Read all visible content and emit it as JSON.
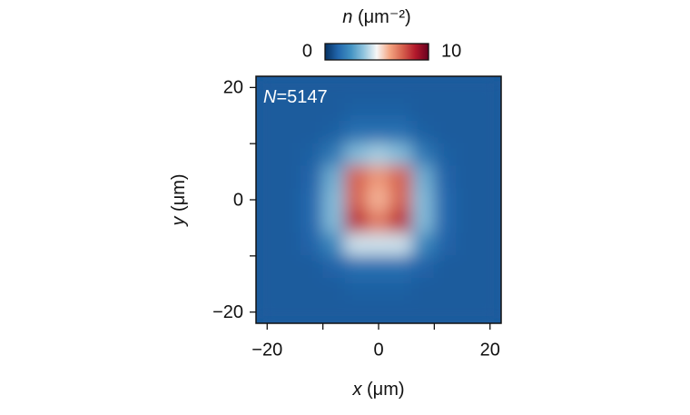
{
  "chart_data": {
    "type": "heatmap",
    "annotation_symbol": "N",
    "annotation_text": "=5147",
    "xlabel_symbol": "x",
    "xlabel_unit": "(μm)",
    "ylabel_symbol": "y",
    "ylabel_unit": "(μm)",
    "colorbar_symbol": "n",
    "colorbar_unit": "(μm⁻²)",
    "clim": [
      0,
      10
    ],
    "cticks": [
      0,
      10
    ],
    "colormap": [
      "#053061",
      "#2166ac",
      "#4393c3",
      "#92c5de",
      "#f7f7f7",
      "#f4a582",
      "#d6604d",
      "#b2182b",
      "#67001f"
    ],
    "xlim": [
      -22,
      22
    ],
    "ylim": [
      -22,
      22
    ],
    "xticks": [
      {
        "value": -20,
        "label": "−20"
      },
      0,
      20
    ],
    "yticks": [
      {
        "value": -20,
        "label": "−20"
      },
      0,
      20
    ],
    "xminorticks": [
      -10,
      10
    ],
    "yminorticks": [
      -10,
      10
    ],
    "x": [
      -20,
      -16,
      -12,
      -8,
      -4,
      0,
      4,
      8,
      12,
      16,
      20
    ],
    "y": [
      20,
      16,
      12,
      8,
      4,
      0,
      -4,
      -8,
      -12,
      -16,
      -20
    ],
    "z": [
      [
        1,
        1,
        1,
        1,
        1,
        1,
        1,
        1,
        1,
        1,
        1
      ],
      [
        1,
        1,
        1,
        1,
        1.1,
        1.1,
        1.1,
        1,
        1,
        1,
        1
      ],
      [
        1,
        1,
        1,
        1.1,
        1.5,
        1.5,
        1.5,
        1.1,
        1,
        1,
        1
      ],
      [
        1,
        1,
        1.1,
        1.8,
        3.5,
        4,
        3.5,
        1.8,
        1.1,
        1,
        1
      ],
      [
        1,
        1,
        1.2,
        3.2,
        7.5,
        6.5,
        7.5,
        3.2,
        1.2,
        1,
        1
      ],
      [
        1,
        1,
        1.3,
        3.5,
        7.5,
        6,
        7.5,
        3.5,
        1.3,
        1,
        1
      ],
      [
        1,
        1,
        1.3,
        3.5,
        8.5,
        7,
        8.5,
        3.5,
        1.3,
        1,
        1
      ],
      [
        1,
        1,
        1.2,
        2.2,
        4.5,
        4.5,
        4.5,
        2.2,
        1.2,
        1,
        1
      ],
      [
        1,
        1,
        1,
        1.2,
        1.5,
        1.5,
        1.5,
        1.2,
        1,
        1,
        1
      ],
      [
        1,
        1,
        1,
        1,
        1.1,
        1.1,
        1.1,
        1,
        1,
        1,
        1
      ],
      [
        1,
        1,
        1,
        1,
        1,
        1,
        1,
        1,
        1,
        1,
        1
      ]
    ]
  }
}
